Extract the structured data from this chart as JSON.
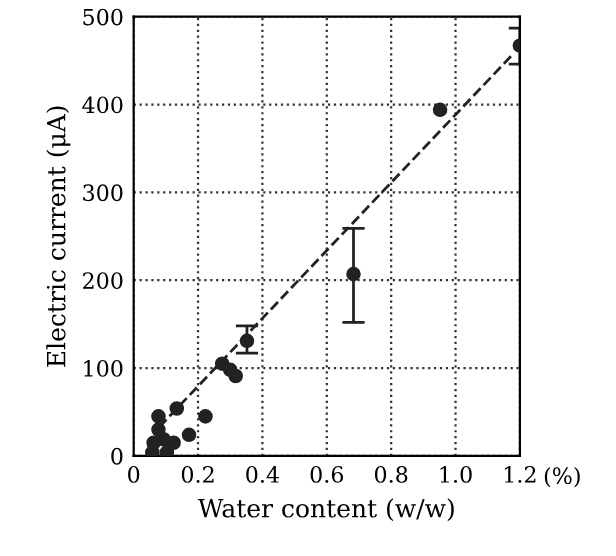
{
  "chart_data": {
    "type": "scatter",
    "xlabel": "Water content (w/w)",
    "ylabel": "Electric current (μA)",
    "xlim": [
      0,
      1.2
    ],
    "ylim": [
      0,
      500
    ],
    "xticks": [
      0,
      0.2,
      0.4,
      0.6,
      0.8,
      {
        "value": 1.0,
        "label": "1.0"
      },
      1.2
    ],
    "yticks": [
      0,
      100,
      200,
      300,
      400,
      500
    ],
    "grid": true,
    "annotations": [
      "(%)"
    ],
    "series": [
      {
        "marker": "circle",
        "color": "#222222",
        "x": [
          1.2,
          0.952,
          0.683,
          0.352,
          0.275,
          0.3,
          0.317,
          0.223,
          0.172,
          0.134,
          0.077,
          0.077,
          0.062,
          0.093,
          0.058,
          0.103,
          0.124
        ],
        "values": [
          467,
          394,
          207,
          131,
          105,
          98,
          91,
          45,
          24,
          54,
          45,
          30,
          15,
          19,
          4,
          4,
          15
        ],
        "errors": [
          [
            446,
            487
          ],
          null,
          [
            152,
            259
          ],
          [
            117,
            148
          ],
          null,
          null,
          null,
          null,
          null,
          null,
          null,
          null,
          null,
          null,
          null,
          null,
          null
        ]
      },
      {
        "type": "line",
        "color": "#222222",
        "line_style": "dashed",
        "marker": "none",
        "x": [
          0.08,
          1.18
        ],
        "values": [
          33,
          458
        ]
      }
    ]
  }
}
